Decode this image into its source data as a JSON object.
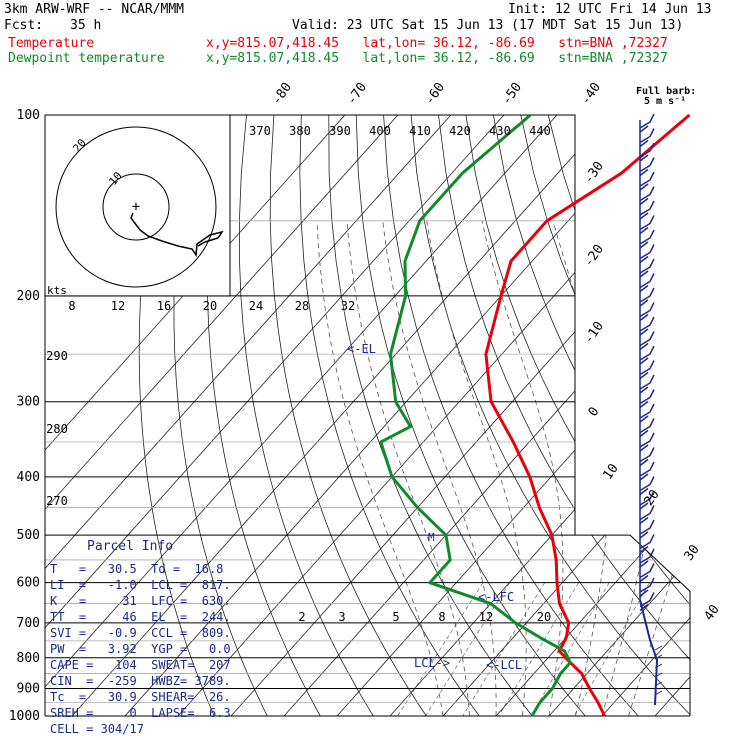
{
  "header": {
    "model": "3km ARW-WRF -- NCAR/MMM",
    "init": "Init: 12 UTC Fri 14 Jun 13",
    "fcst_label": "Fcst:",
    "fcst_value": "35 h",
    "valid": "Valid: 23 UTC Sat 15 Jun 13 (17 MDT Sat 15 Jun 13)",
    "temp_label": "Temperature",
    "temp_info": "x,y=815.07,418.45   lat,lon= 36.12, -86.69   stn=BNA ,72327",
    "dew_label": "Dewpoint temperature",
    "dew_info": "x,y=815.07,418.45   lat,lon= 36.12, -86.69   stn=BNA ,72327"
  },
  "parcel": {
    "title": "Parcel Info",
    "rows": [
      {
        "a": "T   =   30.5",
        "b": "Td =  16.8"
      },
      {
        "a": "LI  =   -1.0",
        "b": "LCL =  817."
      },
      {
        "a": "K   =     31",
        "b": "LFC =  630."
      },
      {
        "a": "TT  =     46",
        "b": "EL  =  244."
      },
      {
        "a": "SVI =   -0.9",
        "b": "CCL =  809."
      },
      {
        "a": "PW  =   3.92",
        "b": "YGP =   0.0"
      },
      {
        "a": "CAPE =   104",
        "b": "SWEAT=  207"
      },
      {
        "a": "CIN  =  -259",
        "b": "HWBZ= 3789."
      },
      {
        "a": "Tc  =   30.9",
        "b": "SHEAR=  26."
      },
      {
        "a": "SREH =     0",
        "b": "LAPSE=  6.3"
      },
      {
        "a": "CELL = 304/17",
        "b": ""
      }
    ]
  },
  "chart_data": {
    "type": "line",
    "subtype": "skew-T log-P",
    "pressure_ticks": [
      "100",
      "200",
      "300",
      "400",
      "500",
      "600",
      "700",
      "800",
      "900",
      "1000"
    ],
    "isotherm_labels": [
      "-80",
      "-70",
      "-60",
      "-50",
      "-40",
      "-30",
      "-20",
      "-10",
      "0",
      "10",
      "20",
      "30",
      "40"
    ],
    "theta_labels": [
      "370",
      "380",
      "390",
      "400",
      "410",
      "420",
      "430",
      "440"
    ],
    "theta_left_labels": [
      "290",
      "280",
      "270"
    ],
    "mixing_ratio_labels": [
      "2",
      "3",
      "5",
      "8",
      "12",
      "20"
    ],
    "hodograph": {
      "unit": "kts",
      "ring_labels": [
        "20",
        "10"
      ],
      "speed_ticks": [
        "8",
        "12",
        "16",
        "20",
        "24",
        "28",
        "32"
      ]
    },
    "wind_barb_legend": "Full barb: 5 m s⁻¹",
    "annotations": {
      "el": "<-EL",
      "lfc": "<-LFC",
      "lcl_left": "LCL->",
      "lcl_right": "<-LCL",
      "mark": "M"
    },
    "series": [
      {
        "name": "Temperature",
        "color": "#e8000b",
        "points": [
          [
            100,
            -55
          ],
          [
            125,
            -58
          ],
          [
            150,
            -64
          ],
          [
            175,
            -64
          ],
          [
            200,
            -60
          ],
          [
            250,
            -53
          ],
          [
            300,
            -44
          ],
          [
            350,
            -33
          ],
          [
            400,
            -24
          ],
          [
            450,
            -17
          ],
          [
            500,
            -10
          ],
          [
            550,
            -5
          ],
          [
            600,
            -1
          ],
          [
            650,
            3
          ],
          [
            700,
            8
          ],
          [
            740,
            10
          ],
          [
            780,
            11
          ],
          [
            815,
            15
          ],
          [
            850,
            19
          ],
          [
            900,
            23
          ],
          [
            950,
            27
          ],
          [
            1000,
            30.5
          ]
        ]
      },
      {
        "name": "Dewpoint temperature",
        "color": "#118a2c",
        "points": [
          [
            100,
            -85
          ],
          [
            125,
            -88
          ],
          [
            150,
            -88
          ],
          [
            175,
            -84
          ],
          [
            200,
            -78
          ],
          [
            250,
            -71
          ],
          [
            300,
            -62
          ],
          [
            330,
            -55
          ],
          [
            350,
            -58
          ],
          [
            400,
            -50
          ],
          [
            450,
            -40
          ],
          [
            500,
            -30
          ],
          [
            550,
            -25
          ],
          [
            600,
            -25
          ],
          [
            650,
            -10
          ],
          [
            700,
            -2
          ],
          [
            740,
            5
          ],
          [
            780,
            12
          ],
          [
            815,
            15
          ],
          [
            850,
            15
          ],
          [
            900,
            16
          ],
          [
            950,
            16
          ],
          [
            1000,
            16.8
          ]
        ]
      }
    ]
  }
}
